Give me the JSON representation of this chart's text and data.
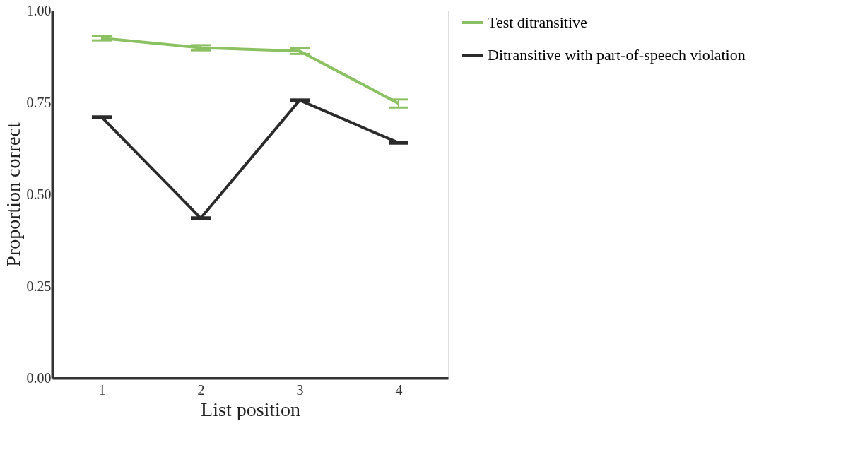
{
  "chart_data": {
    "type": "line",
    "xlabel": "List position",
    "ylabel": "Proportion correct",
    "categories": [
      "1",
      "2",
      "3",
      "4"
    ],
    "series": [
      {
        "name": "Test ditransitive",
        "color": "#8cc163",
        "values": [
          0.925,
          0.899,
          0.89,
          0.747
        ],
        "errors": [
          0.006,
          0.007,
          0.008,
          0.011
        ]
      },
      {
        "name": "Ditransitive with part-of-speech violation",
        "color": "#2b2b2b",
        "values": [
          0.71,
          0.435,
          0.756,
          0.64
        ],
        "errors": [
          0.002,
          0.002,
          0.002,
          0.002
        ]
      }
    ],
    "ylim": [
      0,
      1
    ],
    "yticks": [
      {
        "value": 0,
        "label": "0.00"
      },
      {
        "value": 0.25,
        "label": "0.25"
      },
      {
        "value": 0.5,
        "label": "0.50"
      },
      {
        "value": 0.75,
        "label": "0.75"
      },
      {
        "value": 1,
        "label": "1.00"
      }
    ],
    "grid": false,
    "legend": "right",
    "marker": "none",
    "line_style": "solid"
  }
}
